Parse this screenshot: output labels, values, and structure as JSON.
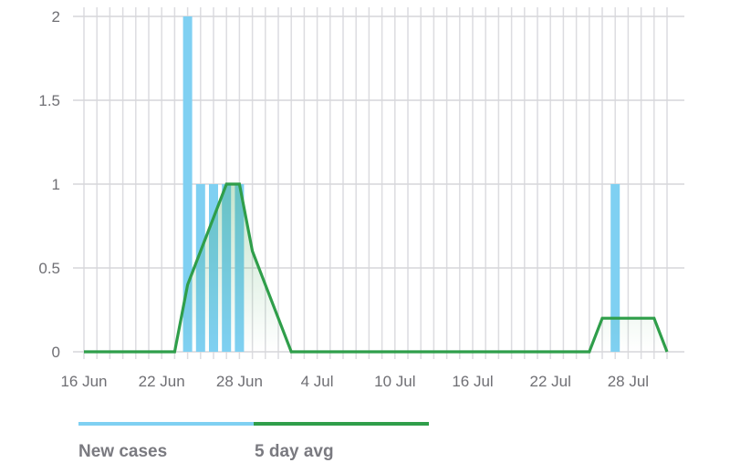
{
  "chart_data": {
    "type": "bar",
    "x_start": "2020-06-16",
    "categories": [
      "16 Jun",
      "17 Jun",
      "18 Jun",
      "19 Jun",
      "20 Jun",
      "21 Jun",
      "22 Jun",
      "23 Jun",
      "24 Jun",
      "25 Jun",
      "26 Jun",
      "27 Jun",
      "28 Jun",
      "29 Jun",
      "30 Jun",
      "1 Jul",
      "2 Jul",
      "3 Jul",
      "4 Jul",
      "5 Jul",
      "6 Jul",
      "7 Jul",
      "8 Jul",
      "9 Jul",
      "10 Jul",
      "11 Jul",
      "12 Jul",
      "13 Jul",
      "14 Jul",
      "15 Jul",
      "16 Jul",
      "17 Jul",
      "18 Jul",
      "19 Jul",
      "20 Jul",
      "21 Jul",
      "22 Jul",
      "23 Jul",
      "24 Jul",
      "25 Jul",
      "26 Jul",
      "27 Jul",
      "28 Jul",
      "29 Jul",
      "30 Jul",
      "31 Jul"
    ],
    "series": [
      {
        "name": "New cases",
        "type": "bar",
        "color": "#7fd0f2",
        "values": [
          0,
          0,
          0,
          0,
          0,
          0,
          0,
          0,
          2,
          1,
          1,
          1,
          1,
          0,
          0,
          0,
          0,
          0,
          0,
          0,
          0,
          0,
          0,
          0,
          0,
          0,
          0,
          0,
          0,
          0,
          0,
          0,
          0,
          0,
          0,
          0,
          0,
          0,
          0,
          0,
          0,
          1,
          0,
          0,
          0,
          0
        ]
      },
      {
        "name": "5 day avg",
        "type": "line",
        "color": "#2f9e4a",
        "values": [
          0,
          0,
          0,
          0,
          0,
          0,
          0,
          0,
          0.4,
          0.6,
          0.8,
          1,
          1,
          0.6,
          0.4,
          0.2,
          0,
          0,
          0,
          0,
          0,
          0,
          0,
          0,
          0,
          0,
          0,
          0,
          0,
          0,
          0,
          0,
          0,
          0,
          0,
          0,
          0,
          0,
          0,
          0,
          0.2,
          0.2,
          0.2,
          0.2,
          0.2,
          0
        ]
      }
    ],
    "x_tick_labels": [
      "16 Jun",
      "22 Jun",
      "28 Jun",
      "4 Jul",
      "10 Jul",
      "16 Jul",
      "22 Jul",
      "28 Jul"
    ],
    "y_ticks": [
      0,
      0.5,
      1,
      1.5,
      2
    ],
    "y_tick_labels": [
      "0",
      "0.5",
      "1",
      "1.5",
      "2"
    ],
    "ylim": [
      0,
      2
    ],
    "grid": true,
    "legend_position": "bottom-left",
    "title": "",
    "xlabel": "",
    "ylabel": ""
  },
  "legend": {
    "new_cases_label": "New cases",
    "avg_label": "5 day avg"
  }
}
